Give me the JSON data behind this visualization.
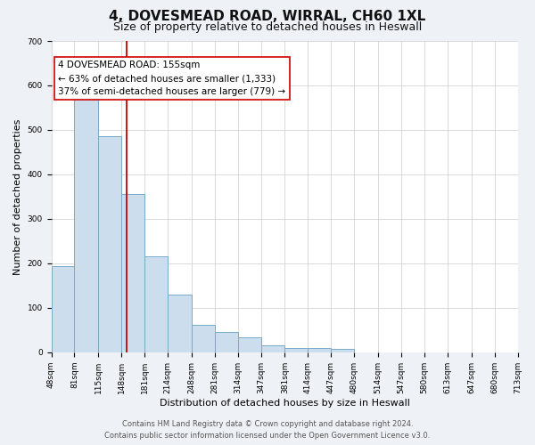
{
  "title": "4, DOVESMEAD ROAD, WIRRAL, CH60 1XL",
  "subtitle": "Size of property relative to detached houses in Heswall",
  "xlabel": "Distribution of detached houses by size in Heswall",
  "ylabel": "Number of detached properties",
  "bar_values": [
    193,
    580,
    485,
    355,
    215,
    130,
    62,
    45,
    33,
    15,
    10,
    10,
    7
  ],
  "bin_edges": [
    48,
    81,
    115,
    148,
    181,
    214,
    248,
    281,
    314,
    347,
    381,
    414,
    447,
    480
  ],
  "tick_labels": [
    "48sqm",
    "81sqm",
    "115sqm",
    "148sqm",
    "181sqm",
    "214sqm",
    "248sqm",
    "281sqm",
    "314sqm",
    "347sqm",
    "381sqm",
    "414sqm",
    "447sqm",
    "480sqm",
    "514sqm",
    "547sqm",
    "580sqm",
    "613sqm",
    "647sqm",
    "680sqm",
    "713sqm"
  ],
  "all_ticks": [
    48,
    81,
    115,
    148,
    181,
    214,
    248,
    281,
    314,
    347,
    381,
    414,
    447,
    480,
    514,
    547,
    580,
    613,
    647,
    680,
    713
  ],
  "bar_color": "#ccdded",
  "bar_edge_color": "#7aaac8",
  "vline_x": 155,
  "vline_color": "#cc0000",
  "annotation_title": "4 DOVESMEAD ROAD: 155sqm",
  "annotation_line1": "← 63% of detached houses are smaller (1,333)",
  "annotation_line2": "37% of semi-detached houses are larger (779) →",
  "annotation_box_color": "#ffffff",
  "annotation_box_edge": "#cc0000",
  "ylim": [
    0,
    700
  ],
  "yticks": [
    0,
    100,
    200,
    300,
    400,
    500,
    600,
    700
  ],
  "footnote1": "Contains HM Land Registry data © Crown copyright and database right 2024.",
  "footnote2": "Contains public sector information licensed under the Open Government Licence v3.0.",
  "background_color": "#eef2f7",
  "plot_background": "#ffffff",
  "grid_color": "#cccccc",
  "title_fontsize": 11,
  "subtitle_fontsize": 9,
  "axis_label_fontsize": 8,
  "tick_fontsize": 6.5,
  "annotation_fontsize": 7.5,
  "footnote_fontsize": 6
}
